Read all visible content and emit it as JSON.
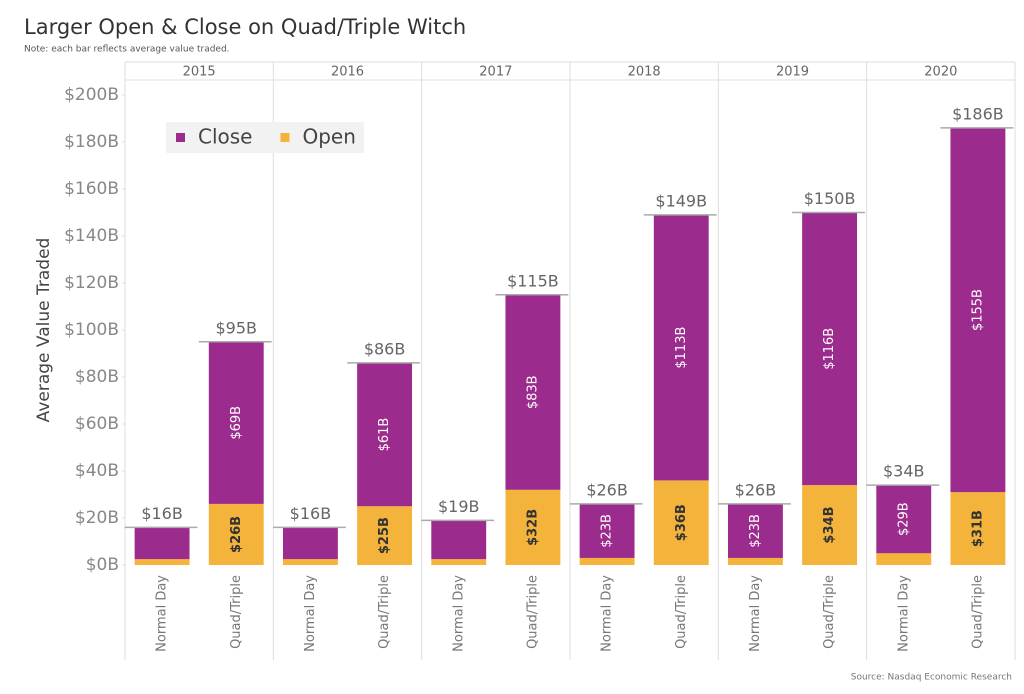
{
  "chart_data": {
    "type": "stacked-bar",
    "title": "Larger Open & Close on Quad/Triple Witch",
    "subtitle": "Note: each bar reflects average value traded.",
    "source": "Source: Nasdaq Economic Research",
    "y_label": "Average Value Traded",
    "groups": [
      "2015",
      "2016",
      "2017",
      "2018",
      "2019",
      "2020"
    ],
    "categories": [
      "Normal Day",
      "Quad/Triple",
      "Normal Day",
      "Quad/Triple",
      "Normal Day",
      "Quad/Triple",
      "Normal Day",
      "Quad/Triple",
      "Normal Day",
      "Quad/Triple",
      "Normal Day",
      "Quad/Triple"
    ],
    "series": [
      {
        "name": "Open",
        "color": "#f4b43c",
        "values": [
          2.5,
          26,
          2.5,
          25,
          2.5,
          32,
          3,
          36,
          3,
          34,
          5,
          31
        ],
        "value_labels": [
          null,
          "$26B",
          null,
          "$25B",
          null,
          "$32B",
          null,
          "$36B",
          null,
          "$34B",
          null,
          "$31B"
        ]
      },
      {
        "name": "Close",
        "color": "#9b2b8d",
        "values": [
          13.5,
          69,
          13.5,
          61,
          16.5,
          83,
          23,
          113,
          23,
          116,
          29,
          155
        ],
        "value_labels": [
          null,
          "$69B",
          null,
          "$61B",
          null,
          "$83B",
          "$23B",
          "$113B",
          "$23B",
          "$116B",
          "$29B",
          "$155B"
        ]
      }
    ],
    "totals": {
      "values": [
        16,
        95,
        16,
        86,
        19,
        115,
        26,
        149,
        26,
        150,
        34,
        186
      ],
      "value_labels": [
        "$16B",
        "$95B",
        "$16B",
        "$86B",
        "$19B",
        "$115B",
        "$26B",
        "$149B",
        "$26B",
        "$150B",
        "$34B",
        "$186B"
      ]
    },
    "legend_order": [
      "Close",
      "Open"
    ],
    "legend_position": "upper-left",
    "ylim": [
      0,
      200
    ],
    "yticks": [
      {
        "value": 0,
        "label": "$0B"
      },
      {
        "value": 20,
        "label": "$20B"
      },
      {
        "value": 40,
        "label": "$40B"
      },
      {
        "value": 60,
        "label": "$60B"
      },
      {
        "value": 80,
        "label": "$80B"
      },
      {
        "value": 100,
        "label": "$100B"
      },
      {
        "value": 120,
        "label": "$120B"
      },
      {
        "value": 140,
        "label": "$140B"
      },
      {
        "value": 160,
        "label": "$160B"
      },
      {
        "value": 180,
        "label": "$180B"
      },
      {
        "value": 200,
        "label": "$200B"
      }
    ],
    "grid": false
  }
}
